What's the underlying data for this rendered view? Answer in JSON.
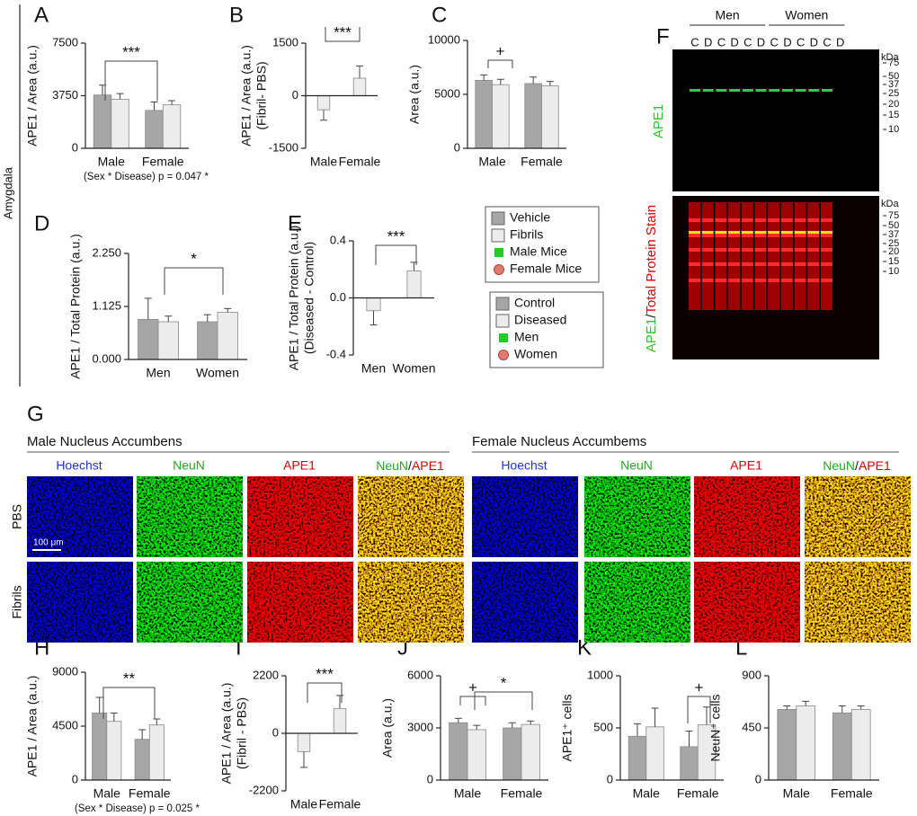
{
  "figure_labels": [
    "A",
    "B",
    "C",
    "D",
    "E",
    "F",
    "G",
    "H",
    "I",
    "J",
    "K",
    "L"
  ],
  "region_label": "Amygdala",
  "chart_data": [
    {
      "type": "bar",
      "y_label": [
        "APE1 / Area (a.u.)"
      ],
      "categories": [
        "Male",
        "Female"
      ],
      "series": [
        {
          "color": "#a6a6a6",
          "values": [
            3800,
            2700
          ],
          "errors": [
            700,
            600
          ]
        },
        {
          "color": "#ececec",
          "values": [
            3500,
            3100
          ],
          "errors": [
            400,
            300
          ]
        }
      ],
      "ylim": [
        0,
        7500
      ],
      "yticks": [
        0,
        3750,
        7500
      ],
      "annotations": [
        "***"
      ],
      "note": "(Sex * Disease) p = 0.047 *"
    },
    {
      "type": "bar",
      "y_label": [
        "APE1 / Area (a.u.)",
        "(Fibril- PBS)"
      ],
      "categories": [
        "Male",
        "Female"
      ],
      "series": [
        {
          "color": "#ececec",
          "values": [
            -400,
            500
          ],
          "errors": [
            300,
            350
          ]
        }
      ],
      "ylim": [
        -1500,
        1500
      ],
      "yticks": [
        -1500,
        0,
        1500
      ],
      "annotations": [
        "***"
      ]
    },
    {
      "type": "bar",
      "y_label": [
        "Area (a.u.)"
      ],
      "categories": [
        "Male",
        "Female"
      ],
      "series": [
        {
          "color": "#a6a6a6",
          "values": [
            6300,
            6000
          ],
          "errors": [
            500,
            600
          ]
        },
        {
          "color": "#ececec",
          "values": [
            5900,
            5800
          ],
          "errors": [
            500,
            400
          ]
        }
      ],
      "ylim": [
        0,
        10000
      ],
      "yticks": [
        0,
        5000,
        10000
      ],
      "annotations": [
        "+"
      ]
    },
    {
      "type": "bar",
      "y_label": [
        "APE1 / Total Protein (a.u.)"
      ],
      "categories": [
        "Men",
        "Women"
      ],
      "series": [
        {
          "color": "#a6a6a6",
          "values": [
            0.85,
            0.8
          ],
          "errors": [
            0.45,
            0.15
          ]
        },
        {
          "color": "#ececec",
          "values": [
            0.8,
            1.0
          ],
          "errors": [
            0.12,
            0.08
          ]
        }
      ],
      "ylim": [
        0,
        2.25
      ],
      "yticks": [
        {
          "value": 0,
          "label": "0.000"
        },
        {
          "value": 1.125,
          "label": "1.125"
        },
        {
          "value": 2.25,
          "label": "2.250"
        }
      ],
      "annotations": [
        "*"
      ]
    },
    {
      "type": "bar",
      "y_label": [
        "APE1 / Total Protein (a.u.)",
        "(Diseased - Control)"
      ],
      "categories": [
        "Men",
        "Women"
      ],
      "series": [
        {
          "color": "#ececec",
          "values": [
            -0.09,
            0.19
          ],
          "errors": [
            0.1,
            0.06
          ]
        }
      ],
      "ylim": [
        -0.4,
        0.4
      ],
      "yticks": [
        -0.4,
        {
          "value": 0,
          "label": "0.0"
        },
        0.4
      ],
      "annotations": [
        "***"
      ]
    },
    {
      "type": "bar",
      "y_label": [
        "APE1 / Area (a.u.)"
      ],
      "categories": [
        "Male",
        "Female"
      ],
      "series": [
        {
          "color": "#a6a6a6",
          "values": [
            5600,
            3400
          ],
          "errors": [
            1300,
            800
          ]
        },
        {
          "color": "#ececec",
          "values": [
            4900,
            4600
          ],
          "errors": [
            700,
            500
          ]
        }
      ],
      "ylim": [
        0,
        9000
      ],
      "yticks": [
        0,
        4500,
        9000
      ],
      "annotations": [
        "**"
      ],
      "note": "(Sex * Disease) p = 0.025 *"
    },
    {
      "type": "bar",
      "y_label": [
        "APE1 / Area (a.u.)",
        "(Fibril - PBS)"
      ],
      "categories": [
        "Male",
        "Female"
      ],
      "series": [
        {
          "color": "#ececec",
          "values": [
            -700,
            950
          ],
          "errors": [
            600,
            500
          ]
        }
      ],
      "ylim": [
        -2200,
        2200
      ],
      "yticks": [
        -2200,
        0,
        2200
      ],
      "annotations": [
        "***"
      ]
    },
    {
      "type": "bar",
      "y_label": [
        "Area (a.u.)"
      ],
      "categories": [
        "Male",
        "Female"
      ],
      "series": [
        {
          "color": "#a6a6a6",
          "values": [
            3300,
            3000
          ],
          "errors": [
            250,
            300
          ]
        },
        {
          "color": "#ececec",
          "values": [
            2900,
            3200
          ],
          "errors": [
            250,
            200
          ]
        }
      ],
      "ylim": [
        0,
        6000
      ],
      "yticks": [
        0,
        3000,
        6000
      ],
      "annotations": [
        "+",
        "*"
      ]
    },
    {
      "type": "bar",
      "y_label": [
        "APE1⁺ cells"
      ],
      "categories": [
        "Male",
        "Female"
      ],
      "series": [
        {
          "color": "#a6a6a6",
          "values": [
            420,
            320
          ],
          "errors": [
            120,
            150
          ]
        },
        {
          "color": "#ececec",
          "values": [
            510,
            530
          ],
          "errors": [
            180,
            170
          ]
        }
      ],
      "ylim": [
        0,
        1000
      ],
      "yticks": [
        0,
        500,
        1000
      ],
      "annotations": [
        "+"
      ]
    },
    {
      "type": "bar",
      "y_label": [
        "NeuN⁺ cells"
      ],
      "categories": [
        "Male",
        "Female"
      ],
      "series": [
        {
          "color": "#a6a6a6",
          "values": [
            610,
            580
          ],
          "errors": [
            30,
            60
          ]
        },
        {
          "color": "#ececec",
          "values": [
            640,
            610
          ],
          "errors": [
            40,
            30
          ]
        }
      ],
      "ylim": [
        0,
        900
      ],
      "yticks": [
        0,
        450,
        900
      ],
      "annotations": []
    }
  ],
  "legends": [
    {
      "items": [
        {
          "label": "Vehicle",
          "shape": "bar",
          "color": "#a6a6a6"
        },
        {
          "label": "Fibrils",
          "shape": "bar",
          "color": "#ececec"
        },
        {
          "label": "Male Mice",
          "shape": "square",
          "color": "#22cc22"
        },
        {
          "label": "Female Mice",
          "shape": "circle",
          "color": "#e07a6e"
        }
      ]
    },
    {
      "items": [
        {
          "label": "Control",
          "shape": "bar",
          "color": "#a6a6a6"
        },
        {
          "label": "Diseased",
          "shape": "bar",
          "color": "#ececec"
        },
        {
          "label": "Men",
          "shape": "square",
          "color": "#22cc22"
        },
        {
          "label": "Women",
          "shape": "circle",
          "color": "#e07a6e"
        }
      ]
    }
  ],
  "blot": {
    "groups": [
      "Men",
      "Women"
    ],
    "lanes": [
      "C",
      "D",
      "C",
      "D",
      "C",
      "D",
      "C",
      "D",
      "C",
      "D",
      "C",
      "D"
    ],
    "unit": "kDa",
    "markers": [
      "75",
      "50",
      "37",
      "25",
      "20",
      "15",
      "10"
    ],
    "top_label": "APE1",
    "bottom_label": {
      "a": "APE1",
      "sep": "/",
      "b": "Total Protein Stain"
    }
  },
  "microscopy": {
    "sections": [
      {
        "title": "Male Nucleus Accumbens"
      },
      {
        "title": "Female Nucleus Accumbems"
      }
    ],
    "channels": [
      "Hoechst",
      "NeuN",
      "APE1"
    ],
    "merge": {
      "a": "NeuN",
      "sep": "/",
      "b": "APE1"
    },
    "rows": [
      "PBS",
      "Fibrils"
    ],
    "scale_bar": "100 μm"
  }
}
